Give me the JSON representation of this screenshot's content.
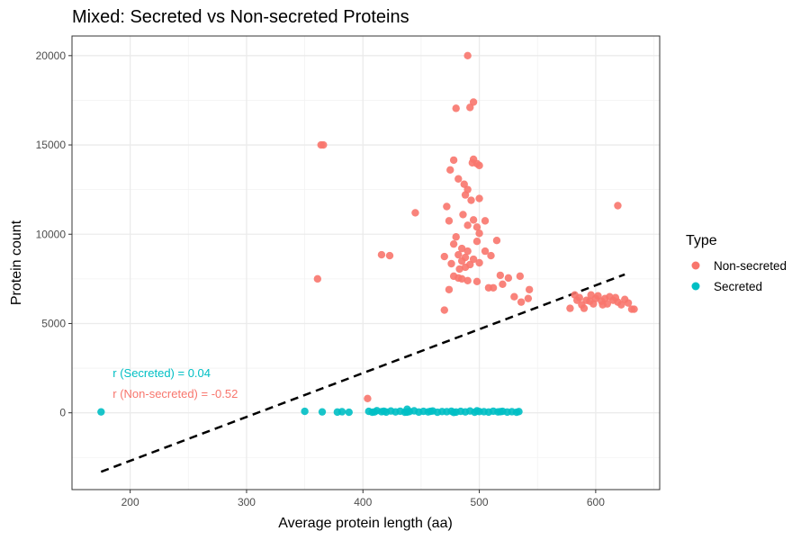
{
  "chart_data": {
    "type": "scatter",
    "title": "Mixed: Secreted vs Non-secreted Proteins",
    "xlabel": "Average protein length (aa)",
    "ylabel": "Protein count",
    "xlim": [
      150,
      655
    ],
    "ylim": [
      -4300,
      21100
    ],
    "x_ticks": [
      200,
      300,
      400,
      500,
      600
    ],
    "y_ticks": [
      0,
      5000,
      10000,
      15000,
      20000
    ],
    "x_tick_labels": [
      "200",
      "300",
      "400",
      "500",
      "600"
    ],
    "y_tick_labels": [
      "0",
      "5000",
      "10000",
      "15000",
      "20000"
    ],
    "grid": true,
    "legend": {
      "title": "Type",
      "position": "right",
      "entries": [
        {
          "label": "Non-secreted",
          "color": "#F8766D"
        },
        {
          "label": "Secreted",
          "color": "#00BFC4"
        }
      ]
    },
    "annotations": [
      {
        "text": "r (Secreted) = 0.04",
        "color": "#00BFC4",
        "x": 185,
        "y": 2000
      },
      {
        "text": "r (Non-secreted) = -0.52",
        "color": "#F8766D",
        "x": 185,
        "y": 850
      }
    ],
    "trendline": {
      "style": "dashed",
      "color": "#000000",
      "x": [
        175,
        625
      ],
      "y": [
        -3300,
        7750
      ]
    },
    "series": [
      {
        "name": "Non-secreted",
        "color": "#F8766D",
        "points": [
          [
            490,
            20000
          ],
          [
            495,
            17400
          ],
          [
            492,
            17100
          ],
          [
            480,
            17050
          ],
          [
            364,
            15000
          ],
          [
            366,
            15000
          ],
          [
            478,
            14150
          ],
          [
            495,
            14200
          ],
          [
            494,
            14000
          ],
          [
            498,
            13950
          ],
          [
            500,
            13850
          ],
          [
            475,
            13600
          ],
          [
            482,
            13100
          ],
          [
            487,
            12800
          ],
          [
            490,
            12500
          ],
          [
            488,
            12200
          ],
          [
            500,
            12000
          ],
          [
            493,
            11900
          ],
          [
            445,
            11200
          ],
          [
            472,
            11550
          ],
          [
            486,
            11100
          ],
          [
            495,
            10800
          ],
          [
            505,
            10750
          ],
          [
            474,
            10750
          ],
          [
            490,
            10500
          ],
          [
            498,
            10400
          ],
          [
            500,
            10050
          ],
          [
            619,
            11600
          ],
          [
            480,
            9850
          ],
          [
            515,
            9650
          ],
          [
            498,
            9600
          ],
          [
            478,
            9450
          ],
          [
            485,
            9200
          ],
          [
            490,
            9050
          ],
          [
            482,
            8850
          ],
          [
            470,
            8750
          ],
          [
            488,
            8700
          ],
          [
            495,
            8600
          ],
          [
            485,
            8500
          ],
          [
            492,
            8300
          ],
          [
            476,
            8350
          ],
          [
            488,
            8150
          ],
          [
            483,
            8050
          ],
          [
            505,
            9050
          ],
          [
            510,
            8800
          ],
          [
            500,
            8400
          ],
          [
            416,
            8850
          ],
          [
            423,
            8800
          ],
          [
            361,
            7500
          ],
          [
            485,
            7500
          ],
          [
            490,
            7400
          ],
          [
            498,
            7350
          ],
          [
            478,
            7650
          ],
          [
            482,
            7550
          ],
          [
            525,
            7550
          ],
          [
            518,
            7700
          ],
          [
            520,
            7200
          ],
          [
            508,
            7000
          ],
          [
            512,
            7000
          ],
          [
            474,
            6900
          ],
          [
            535,
            7650
          ],
          [
            543,
            6900
          ],
          [
            530,
            6500
          ],
          [
            536,
            6200
          ],
          [
            542,
            6400
          ],
          [
            470,
            5750
          ],
          [
            404,
            800
          ],
          [
            578,
            5850
          ],
          [
            582,
            6600
          ],
          [
            584,
            6300
          ],
          [
            588,
            6050
          ],
          [
            590,
            5850
          ],
          [
            592,
            6300
          ],
          [
            596,
            6600
          ],
          [
            598,
            6100
          ],
          [
            600,
            6400
          ],
          [
            602,
            6550
          ],
          [
            605,
            6250
          ],
          [
            608,
            6400
          ],
          [
            610,
            6100
          ],
          [
            612,
            6500
          ],
          [
            615,
            6300
          ],
          [
            617,
            6450
          ],
          [
            619,
            6200
          ],
          [
            622,
            6050
          ],
          [
            625,
            6350
          ],
          [
            628,
            6150
          ],
          [
            631,
            5800
          ],
          [
            633,
            5800
          ],
          [
            595,
            6250
          ],
          [
            586,
            6450
          ],
          [
            606,
            6050
          ]
        ]
      },
      {
        "name": "Secreted",
        "color": "#00BFC4",
        "points": [
          [
            175,
            50
          ],
          [
            350,
            80
          ],
          [
            365,
            50
          ],
          [
            378,
            40
          ],
          [
            382,
            60
          ],
          [
            388,
            30
          ],
          [
            405,
            80
          ],
          [
            408,
            30
          ],
          [
            412,
            120
          ],
          [
            416,
            60
          ],
          [
            420,
            40
          ],
          [
            424,
            100
          ],
          [
            428,
            50
          ],
          [
            432,
            90
          ],
          [
            436,
            30
          ],
          [
            440,
            70
          ],
          [
            444,
            110
          ],
          [
            448,
            40
          ],
          [
            452,
            80
          ],
          [
            456,
            50
          ],
          [
            460,
            100
          ],
          [
            464,
            30
          ],
          [
            468,
            70
          ],
          [
            472,
            60
          ],
          [
            476,
            90
          ],
          [
            480,
            40
          ],
          [
            484,
            80
          ],
          [
            488,
            50
          ],
          [
            492,
            100
          ],
          [
            496,
            30
          ],
          [
            500,
            70
          ],
          [
            504,
            60
          ],
          [
            508,
            40
          ],
          [
            512,
            90
          ],
          [
            516,
            50
          ],
          [
            520,
            80
          ],
          [
            524,
            40
          ],
          [
            528,
            60
          ],
          [
            532,
            30
          ],
          [
            534,
            70
          ],
          [
            410,
            50
          ],
          [
            418,
            90
          ],
          [
            438,
            40
          ],
          [
            458,
            80
          ],
          [
            478,
            20
          ],
          [
            498,
            110
          ],
          [
            518,
            60
          ],
          [
            438,
            200
          ]
        ]
      }
    ]
  }
}
